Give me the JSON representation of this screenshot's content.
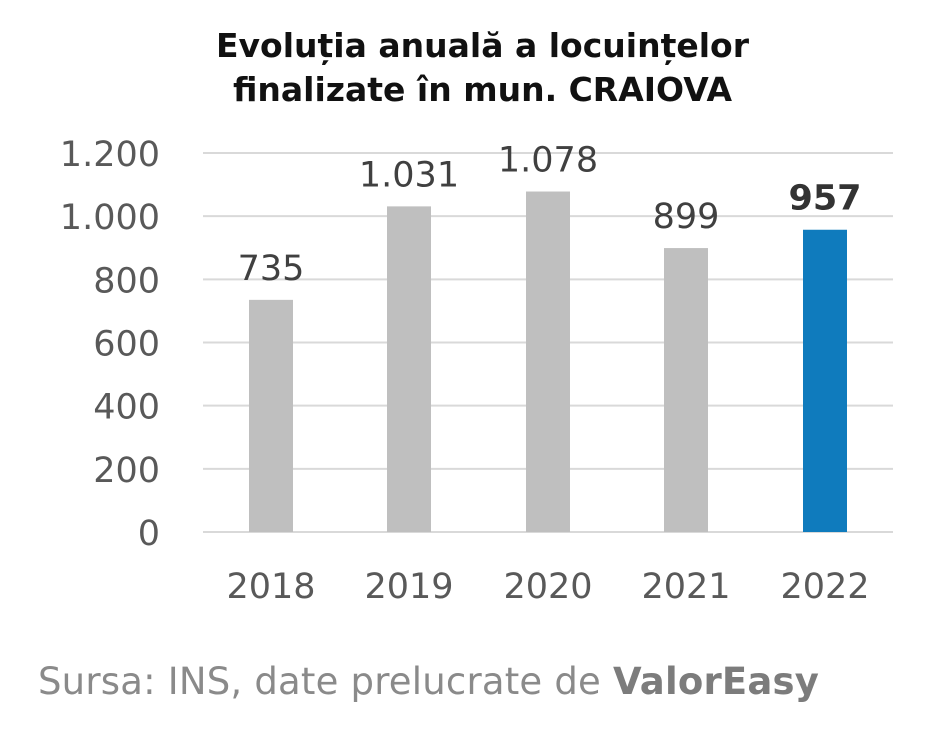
{
  "chart_data": {
    "type": "bar",
    "title_lines": [
      "Evoluția anuală a locuințelor",
      "finalizate în mun. CRAIOVA"
    ],
    "categories": [
      "2018",
      "2019",
      "2020",
      "2021",
      "2022"
    ],
    "values": [
      735,
      1031,
      1078,
      899,
      957
    ],
    "value_labels": [
      "735",
      "1.031",
      "1.078",
      "899",
      "957"
    ],
    "highlight_index": 4,
    "y_ticks": [
      0,
      200,
      400,
      600,
      800,
      1000,
      1200
    ],
    "y_tick_labels": [
      "0",
      "200",
      "400",
      "600",
      "800",
      "1.000",
      "1.200"
    ],
    "ylim": [
      0,
      1200
    ],
    "grid": true,
    "colors": {
      "bar": "#bfbfbf",
      "highlight": "#0f7bbd",
      "grid": "#d9d9d9",
      "tick_text": "#595959",
      "label_text": "#404040"
    }
  },
  "source": {
    "prefix": "Sursa: INS, date prelucrate de ",
    "brand": "ValorEasy"
  }
}
